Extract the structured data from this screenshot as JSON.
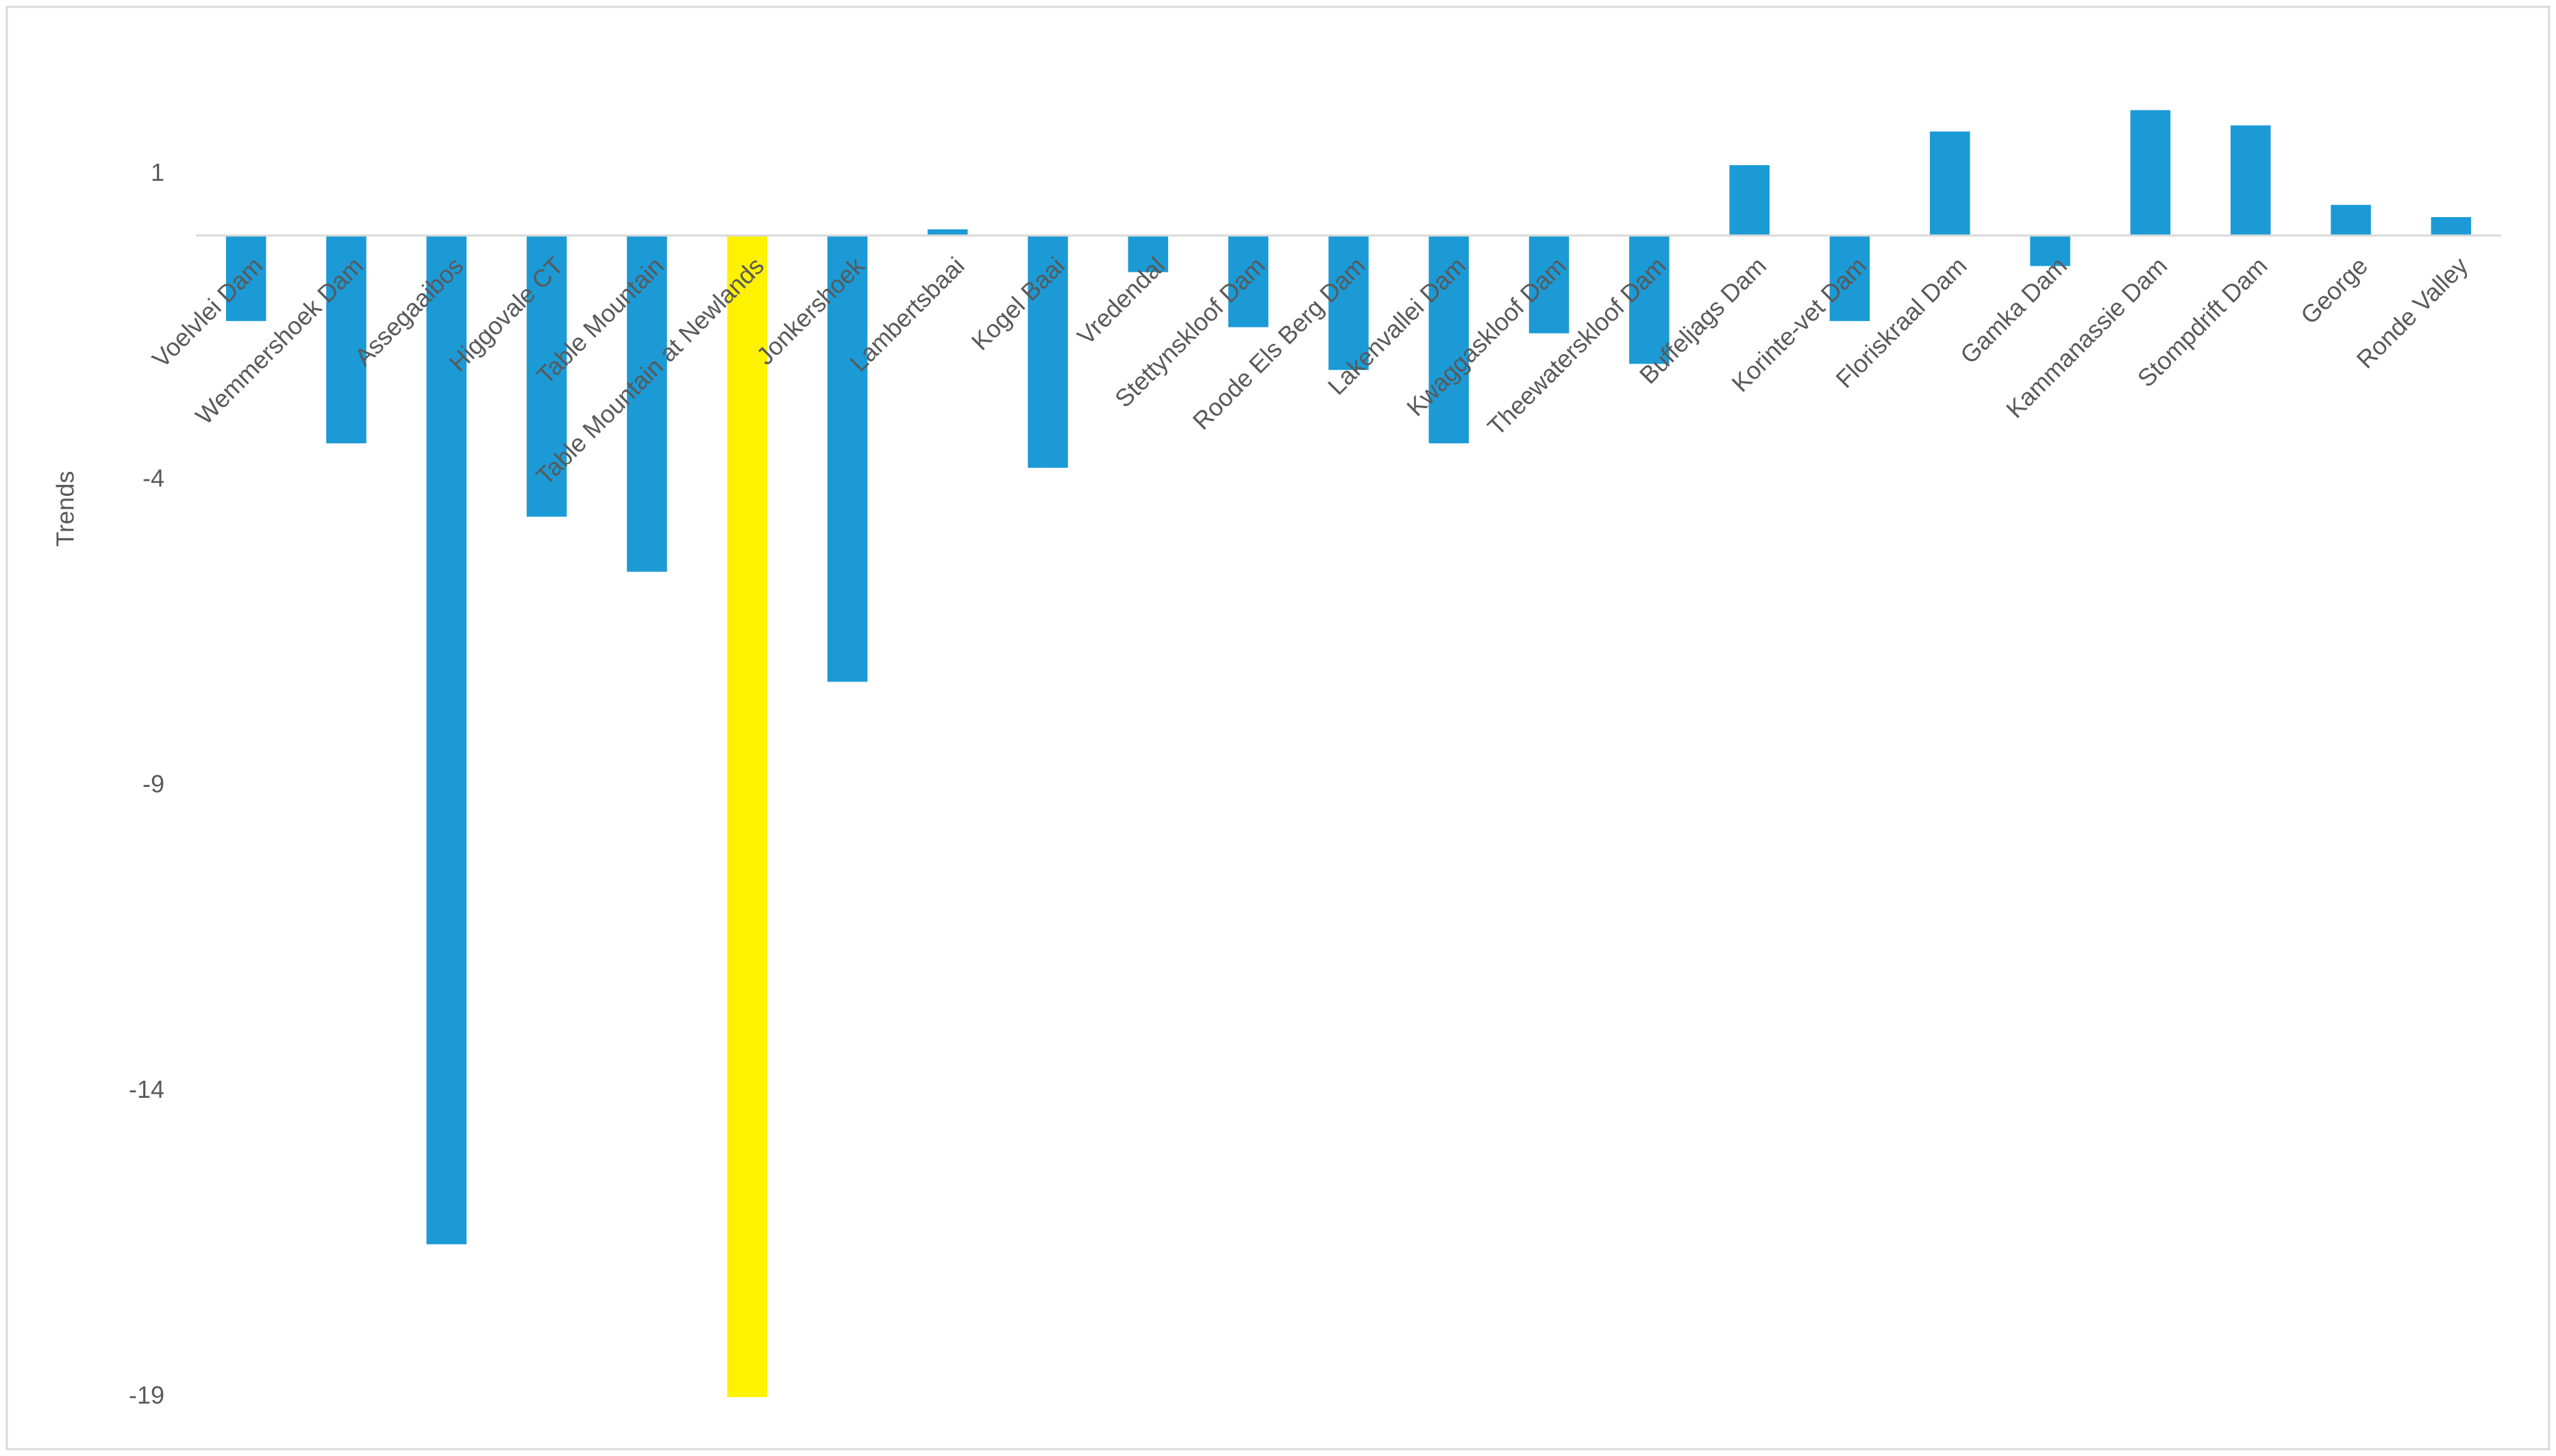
{
  "chart_data": {
    "type": "bar",
    "y_label": "Trends",
    "categories": [
      "Voelvlei Dam",
      "Wemmershoek Dam",
      "Assegaaibos",
      "Higgovale CT",
      "Table Mountain",
      "Table Mountain at Newlands",
      "Jonkershoek",
      "Lambertsbaai",
      "Kogel Baai",
      "Vredendal",
      "Stettynskloof Dam",
      "Roode Els Berg Dam",
      "Lakenvallei Dam",
      "Kwaggaskloof Dam",
      "Theewaterskloof Dam",
      "Buffeljags Dam",
      "Korinte-vet Dam",
      "Floriskraal Dam",
      "Gamka Dam",
      "Kammanassie Dam",
      "Stompdrift Dam",
      "George",
      "Ronde Valley"
    ],
    "values": [
      -1.4,
      -3.4,
      -16.5,
      -4.6,
      -5.5,
      -19,
      -7.3,
      0.1,
      -3.8,
      -0.6,
      -1.5,
      -2.2,
      -3.4,
      -1.6,
      -2.1,
      1.15,
      -1.4,
      1.7,
      -0.5,
      2.05,
      1.8,
      0.5,
      0.3
    ],
    "colors": [
      "#1b9ad6",
      "#1b9ad6",
      "#1b9ad6",
      "#1b9ad6",
      "#1b9ad6",
      "#fff200",
      "#1b9ad6",
      "#1b9ad6",
      "#1b9ad6",
      "#1b9ad6",
      "#1b9ad6",
      "#1b9ad6",
      "#1b9ad6",
      "#1b9ad6",
      "#1b9ad6",
      "#1b9ad6",
      "#1b9ad6",
      "#1b9ad6",
      "#1b9ad6",
      "#1b9ad6",
      "#1b9ad6",
      "#1b9ad6",
      "#1b9ad6"
    ],
    "ylim": [
      -19,
      3
    ],
    "yticks": [
      1,
      -4,
      -9,
      -14,
      -19
    ],
    "grid": false
  }
}
